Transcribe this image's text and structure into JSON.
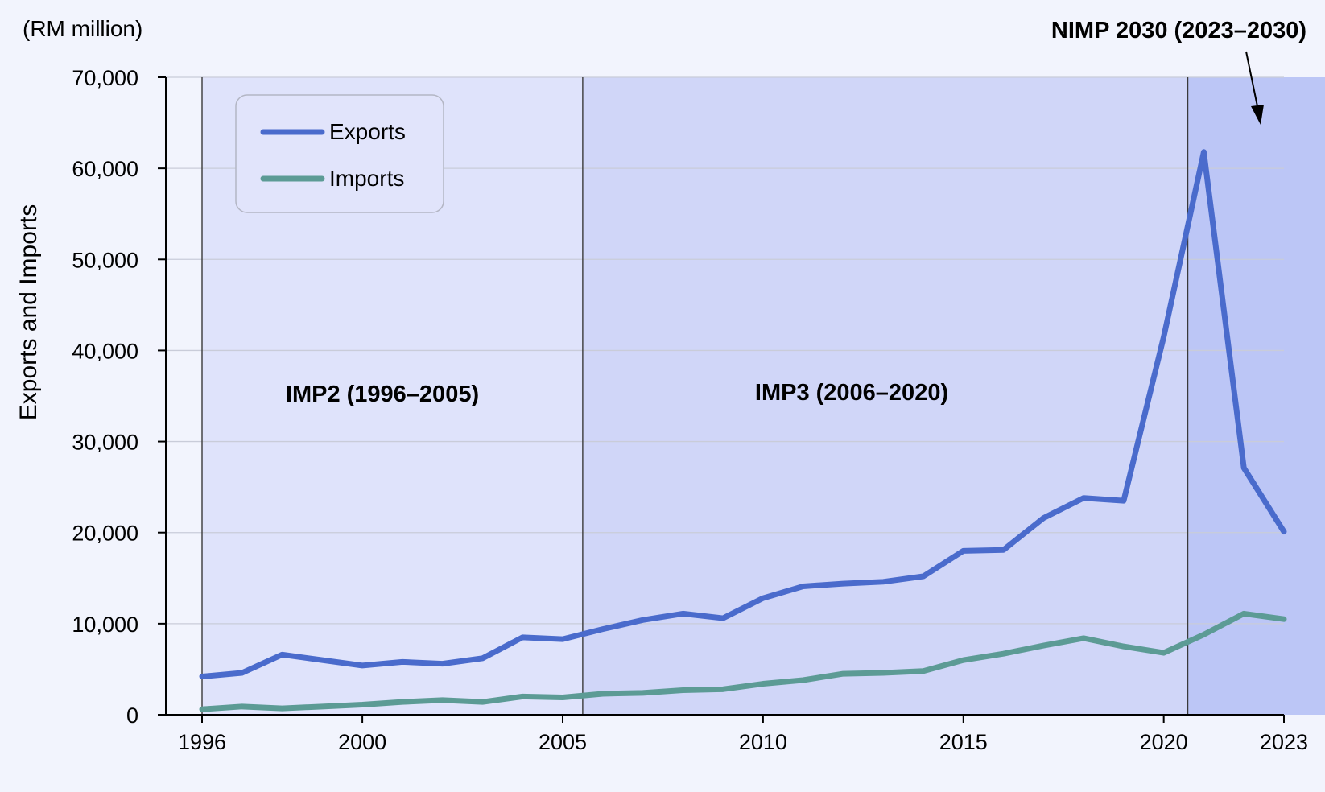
{
  "chart_data": {
    "type": "line",
    "unit_label": "(RM million)",
    "ylabel": "Exports and Imports",
    "xlabel": "",
    "ylim": [
      0,
      70000
    ],
    "xlim": [
      1996,
      2023
    ],
    "y_ticks": [
      0,
      10000,
      20000,
      30000,
      40000,
      50000,
      60000,
      70000
    ],
    "y_tick_labels": [
      "0",
      "10,000",
      "20,000",
      "30,000",
      "40,000",
      "50,000",
      "60,000",
      "70,000"
    ],
    "x_ticks": [
      1996,
      2000,
      2005,
      2010,
      2015,
      2020,
      2023
    ],
    "x_tick_labels": [
      "1996",
      "2000",
      "2005",
      "2010",
      "2015",
      "2020",
      "2023"
    ],
    "grid": "horizontal",
    "legend_position": "top-left",
    "periods": [
      {
        "label": "IMP2 (1996–2005)",
        "start": 1996,
        "end": 2005.5,
        "color": "#dfe3fb"
      },
      {
        "label": "IMP3 (2006–2020)",
        "start": 2005.5,
        "end": 2020.6,
        "color": "#d0d6f8"
      },
      {
        "label": "NIMP 2030 (2023–2030)",
        "start": 2020.6,
        "end": 2023,
        "color": "#bcc6f6"
      }
    ],
    "x": [
      1996,
      1997,
      1998,
      1999,
      2000,
      2001,
      2002,
      2003,
      2004,
      2005,
      2006,
      2007,
      2008,
      2009,
      2010,
      2011,
      2012,
      2013,
      2014,
      2015,
      2016,
      2017,
      2018,
      2019,
      2020,
      2021,
      2022,
      2023
    ],
    "series": [
      {
        "name": "Exports",
        "color": "#4a6bcc",
        "values": [
          4200,
          4600,
          6600,
          6000,
          5400,
          5800,
          5600,
          6200,
          8500,
          8300,
          9400,
          10400,
          11100,
          10600,
          12800,
          14100,
          14400,
          14600,
          15200,
          18000,
          18100,
          21600,
          23800,
          23500,
          41500,
          61800,
          27100,
          20100
        ]
      },
      {
        "name": "Imports",
        "color": "#5c9b95",
        "values": [
          600,
          900,
          700,
          900,
          1100,
          1400,
          1600,
          1400,
          2000,
          1900,
          2300,
          2400,
          2700,
          2800,
          3400,
          3800,
          4500,
          4600,
          4800,
          6000,
          6700,
          7600,
          8400,
          7500,
          6800,
          8800,
          11100,
          10500
        ]
      }
    ]
  }
}
